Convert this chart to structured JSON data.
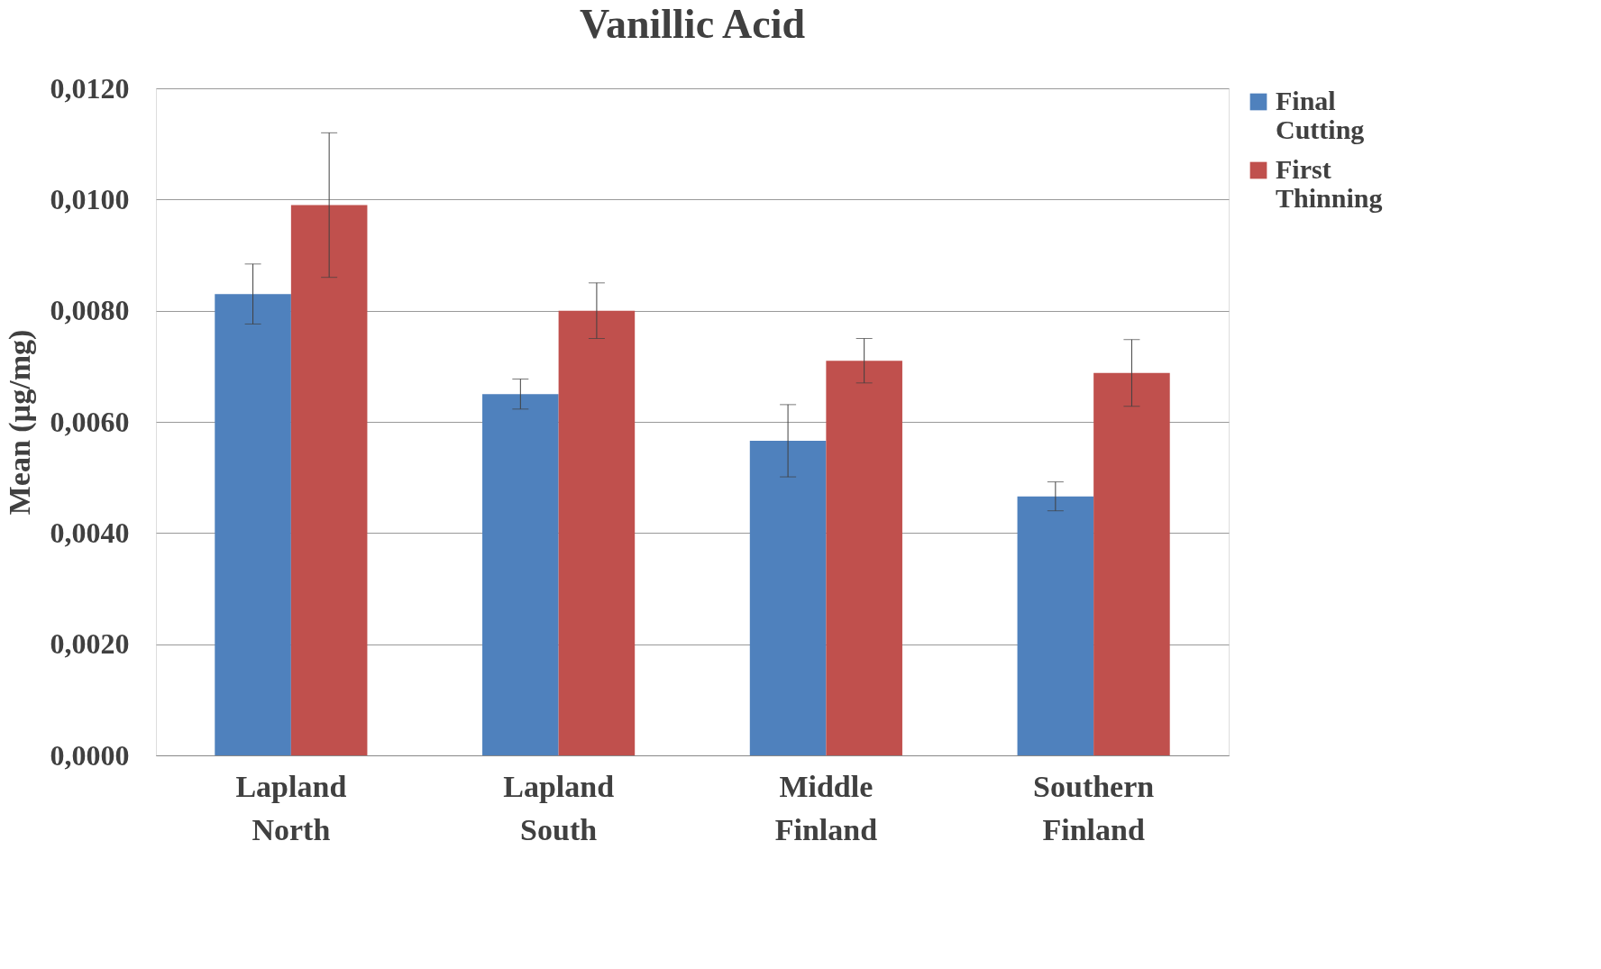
{
  "chart_data": {
    "type": "bar",
    "title": "Vanillic Acid",
    "ylabel": "Mean (µg/mg)",
    "categories": [
      "Lapland North",
      "Lapland South",
      "Middle Finland",
      "Southern Finland"
    ],
    "series": [
      {
        "name": "Final Cutting",
        "color": "#4f81bd",
        "values": [
          0.0083,
          0.0065,
          0.00566,
          0.00466
        ],
        "errors": [
          0.00054,
          0.00027,
          0.00065,
          0.00026
        ]
      },
      {
        "name": "First Thinning",
        "color": "#c0504d",
        "values": [
          0.0099,
          0.008,
          0.0071,
          0.00688
        ],
        "errors": [
          0.0013,
          0.0005,
          0.0004,
          0.0006
        ]
      }
    ],
    "ylim": [
      0,
      0.012
    ],
    "yticks": [
      {
        "value": 0,
        "label": "0,0000"
      },
      {
        "value": 0.002,
        "label": "0,0020"
      },
      {
        "value": 0.004,
        "label": "0,0040"
      },
      {
        "value": 0.006,
        "label": "0,0060"
      },
      {
        "value": 0.008,
        "label": "0,0080"
      },
      {
        "value": 0.01,
        "label": "0,0100"
      },
      {
        "value": 0.012,
        "label": "0,0120"
      }
    ],
    "grid": "y",
    "legend": "right"
  }
}
